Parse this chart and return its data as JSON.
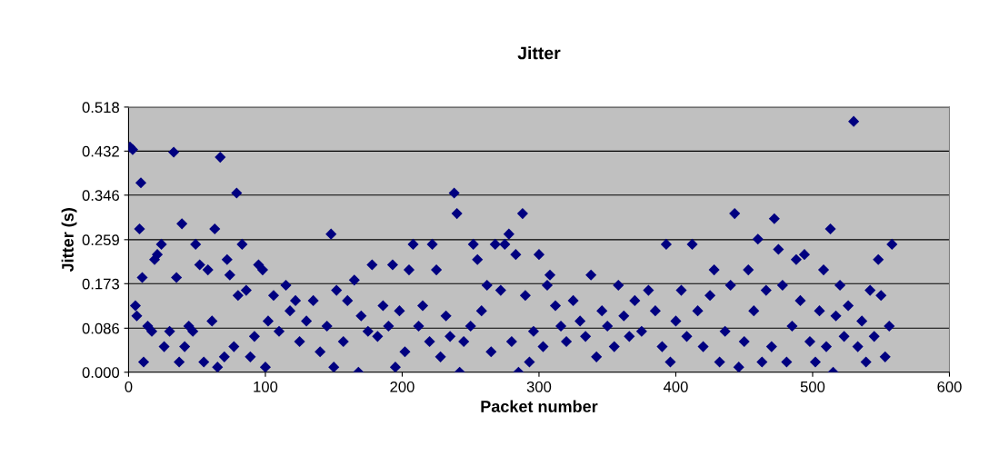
{
  "chart_data": {
    "type": "scatter",
    "title": "Jitter",
    "xlabel": "Packet number",
    "ylabel": "Jitter (s)",
    "x": [
      1,
      3,
      5,
      6,
      8,
      9,
      10,
      11,
      14,
      17,
      19,
      21,
      24,
      26,
      30,
      33,
      35,
      37,
      39,
      41,
      44,
      47,
      49,
      52,
      55,
      58,
      61,
      63,
      65,
      67,
      70,
      72,
      74,
      77,
      79,
      80,
      83,
      86,
      89,
      92,
      95,
      98,
      100,
      102,
      106,
      110,
      115,
      118,
      122,
      125,
      130,
      135,
      140,
      145,
      148,
      150,
      152,
      157,
      160,
      165,
      168,
      170,
      175,
      178,
      182,
      186,
      190,
      193,
      195,
      198,
      202,
      205,
      208,
      212,
      215,
      220,
      222,
      225,
      228,
      232,
      235,
      238,
      240,
      242,
      245,
      250,
      252,
      255,
      258,
      262,
      265,
      268,
      272,
      275,
      278,
      280,
      283,
      285,
      288,
      290,
      293,
      296,
      300,
      303,
      306,
      308,
      312,
      316,
      320,
      325,
      330,
      334,
      338,
      342,
      346,
      350,
      355,
      358,
      362,
      366,
      370,
      375,
      380,
      385,
      390,
      393,
      396,
      400,
      404,
      408,
      412,
      416,
      420,
      425,
      428,
      432,
      436,
      440,
      443,
      446,
      450,
      453,
      457,
      460,
      463,
      466,
      470,
      472,
      475,
      478,
      481,
      485,
      488,
      491,
      494,
      498,
      502,
      505,
      508,
      510,
      513,
      515,
      517,
      520,
      523,
      526,
      530,
      533,
      536,
      539,
      542,
      545,
      548,
      550,
      553,
      556,
      558
    ],
    "series": [
      {
        "color": "#000080",
        "values": [
          0.44,
          0.435,
          0.13,
          0.11,
          0.28,
          0.37,
          0.185,
          0.02,
          0.09,
          0.08,
          0.22,
          0.23,
          0.25,
          0.05,
          0.08,
          0.43,
          0.185,
          0.02,
          0.29,
          0.05,
          0.09,
          0.08,
          0.25,
          0.21,
          0.02,
          0.2,
          0.1,
          0.28,
          0.01,
          0.42,
          0.03,
          0.22,
          0.19,
          0.05,
          0.35,
          0.15,
          0.25,
          0.16,
          0.03,
          0.07,
          0.21,
          0.2,
          0.01,
          0.1,
          0.15,
          0.08,
          0.17,
          0.12,
          0.14,
          0.06,
          0.1,
          0.14,
          0.04,
          0.09,
          0.27,
          0.01,
          0.16,
          0.06,
          0.14,
          0.18,
          0.0,
          0.11,
          0.08,
          0.21,
          0.07,
          0.13,
          0.09,
          0.21,
          0.01,
          0.12,
          0.04,
          0.2,
          0.25,
          0.09,
          0.13,
          0.06,
          0.25,
          0.2,
          0.03,
          0.11,
          0.07,
          0.35,
          0.31,
          0.0,
          0.06,
          0.09,
          0.25,
          0.22,
          0.12,
          0.17,
          0.04,
          0.25,
          0.16,
          0.25,
          0.27,
          0.06,
          0.23,
          0.0,
          0.31,
          0.15,
          0.02,
          0.08,
          0.23,
          0.05,
          0.17,
          0.19,
          0.13,
          0.09,
          0.06,
          0.14,
          0.1,
          0.07,
          0.19,
          0.03,
          0.12,
          0.09,
          0.05,
          0.17,
          0.11,
          0.07,
          0.14,
          0.08,
          0.16,
          0.12,
          0.05,
          0.25,
          0.02,
          0.1,
          0.16,
          0.07,
          0.25,
          0.12,
          0.05,
          0.15,
          0.2,
          0.02,
          0.08,
          0.17,
          0.31,
          0.01,
          0.06,
          0.2,
          0.12,
          0.26,
          0.02,
          0.16,
          0.05,
          0.3,
          0.24,
          0.17,
          0.02,
          0.09,
          0.22,
          0.14,
          0.23,
          0.06,
          0.02,
          0.12,
          0.2,
          0.05,
          0.28,
          0.0,
          0.11,
          0.17,
          0.07,
          0.13,
          0.49,
          0.05,
          0.1,
          0.02,
          0.16,
          0.07,
          0.22,
          0.15,
          0.03,
          0.09,
          0.25
        ]
      }
    ],
    "marker": "diamond",
    "grid": "y",
    "legend": false,
    "xlim": [
      0,
      600
    ],
    "xticks": [
      0,
      100,
      200,
      300,
      400,
      500,
      600
    ],
    "ylim": [
      0,
      0.518
    ],
    "yticks": [
      {
        "value": 0,
        "label": "0.000"
      },
      0.086,
      0.173,
      0.259,
      0.346,
      0.432,
      0.518
    ]
  }
}
